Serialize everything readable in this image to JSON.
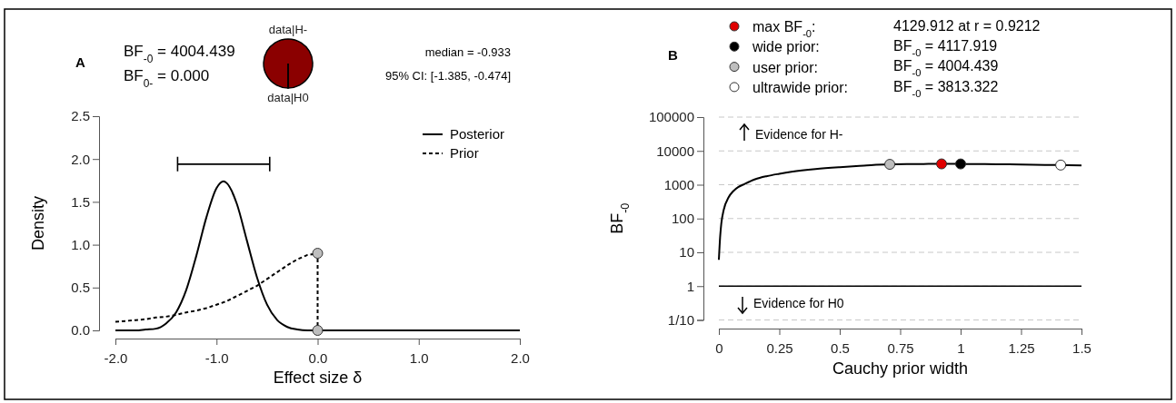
{
  "chart_data": [
    {
      "type": "line",
      "xlabel": "Effect size δ",
      "ylabel": "Density",
      "xlim": [
        -2,
        2
      ],
      "xticks": [
        {
          "value": -2,
          "label": "-2.0"
        },
        {
          "value": -1,
          "label": "-1.0"
        },
        {
          "value": 0,
          "label": "0.0"
        },
        {
          "value": 1,
          "label": "1.0"
        },
        {
          "value": 2,
          "label": "2.0"
        }
      ],
      "ylim": [
        0,
        2.5
      ],
      "yticks": [
        {
          "value": 0,
          "label": "0.0"
        },
        0.5,
        {
          "value": 1,
          "label": "1.0"
        },
        1.5,
        {
          "value": 2,
          "label": "2.0"
        },
        2.5
      ],
      "legend": "top right",
      "annotations": [
        "A",
        "BF$_{-0}$ = 4004.439",
        "BF$_{0-}$ = 0.000",
        "median = -0.933",
        "95% CI: [-1.385, -0.474]"
      ],
      "series": [
        {
          "name": "Posterior",
          "color": "#000000",
          "line_style": "solid",
          "x": [
            -2,
            -1.9,
            -1.8,
            -1.7,
            -1.6,
            -1.5,
            -1.4,
            -1.3,
            -1.2,
            -1.1,
            -1,
            -0.93,
            -0.9,
            -0.8,
            -0.7,
            -0.6,
            -0.5,
            -0.4,
            -0.3,
            -0.2,
            -0.1,
            0,
            0.5,
            1,
            1.5,
            2
          ],
          "values": [
            0,
            0,
            0,
            0.01,
            0.02,
            0.08,
            0.21,
            0.47,
            0.87,
            1.32,
            1.66,
            1.74,
            1.72,
            1.48,
            1.05,
            0.62,
            0.3,
            0.12,
            0.04,
            0.01,
            0,
            0,
            0,
            0,
            0,
            0
          ]
        },
        {
          "name": "Prior",
          "color": "#000000",
          "line_style": "dashed",
          "x": [
            -2,
            -1.9,
            -1.8,
            -1.7,
            -1.6,
            -1.5,
            -1.4,
            -1.3,
            -1.2,
            -1.1,
            -1,
            -0.9,
            -0.8,
            -0.7,
            -0.6,
            -0.5,
            -0.4,
            -0.3,
            -0.2,
            -0.1,
            0,
            0
          ],
          "values": [
            0.1,
            0.11,
            0.12,
            0.13,
            0.15,
            0.16,
            0.18,
            0.21,
            0.23,
            0.26,
            0.3,
            0.34,
            0.4,
            0.46,
            0.52,
            0.6,
            0.68,
            0.76,
            0.83,
            0.88,
            0.9,
            0
          ]
        },
        {
          "type": "line",
          "color": "#000000",
          "line_style": "solid",
          "x": [
            -1.385,
            -0.474
          ],
          "values": [
            1.94,
            1.94
          ]
        },
        {
          "type": "scatter",
          "color": "#bebebe",
          "marker": "circle",
          "x": [
            0,
            0
          ],
          "values": [
            0.9,
            0
          ]
        }
      ]
    },
    {
      "type": "pie",
      "categories": [
        "data|H-",
        "data|H0"
      ],
      "values": [
        99.98,
        0.02
      ],
      "colors": [
        "#8b0000",
        "#ffffff"
      ]
    },
    {
      "type": "line",
      "xlabel": "Cauchy prior width",
      "ylabel": "BF$_{-0}$",
      "log": "y",
      "grid": "y",
      "legend": "top",
      "xlim": [
        0,
        1.5
      ],
      "xticks": [
        0,
        0.25,
        0.5,
        0.75,
        1,
        1.25,
        1.5
      ],
      "ylim": [
        0.1,
        100000
      ],
      "yticks": [
        {
          "value": 0.1,
          "label": "1/10"
        },
        1,
        10,
        100,
        1000,
        10000,
        100000
      ],
      "ref_lines": [
        {
          "axis": "y",
          "value": 1,
          "color": "#000000"
        }
      ],
      "annotations": [
        "B",
        "4129.912 at r = 0.9212",
        "BF$_{-0}$ = 4117.919",
        "BF$_{-0}$ = 4004.439",
        "BF$_{-0}$ = 3813.322",
        "Evidence for H-",
        "Evidence for H0"
      ],
      "series": [
        {
          "color": "#000000",
          "line_style": "solid",
          "x": [
            0,
            0.005,
            0.01,
            0.02,
            0.04,
            0.06,
            0.08,
            0.1,
            0.15,
            0.2,
            0.25,
            0.3,
            0.4,
            0.5,
            0.6,
            0.7,
            0.8,
            0.9,
            1,
            1.1,
            1.2,
            1.3,
            1.4,
            1.5
          ],
          "values": [
            6,
            27,
            70,
            180,
            420,
            650,
            850,
            1000,
            1450,
            1800,
            2100,
            2400,
            2900,
            3300,
            3650,
            3990,
            4080,
            4125,
            4118,
            4060,
            3990,
            3900,
            3825,
            3740
          ]
        },
        {
          "type": "scatter",
          "name": "max BF$_{-0}$:",
          "color": "#e00000",
          "marker": "circle",
          "x": [
            0.9212
          ],
          "values": [
            4129.912
          ]
        },
        {
          "type": "scatter",
          "name": "wide prior:",
          "color": "#000000",
          "marker": "circle",
          "x": [
            1
          ],
          "values": [
            4117.919
          ]
        },
        {
          "type": "scatter",
          "name": "user prior:",
          "color": "#bebebe",
          "marker": "circle",
          "x": [
            0.707
          ],
          "values": [
            4004.439
          ]
        },
        {
          "type": "scatter",
          "name": "ultrawide prior:",
          "color": "#ffffff",
          "marker": "circle",
          "x": [
            1.414
          ],
          "values": [
            3813.322
          ]
        }
      ]
    }
  ]
}
